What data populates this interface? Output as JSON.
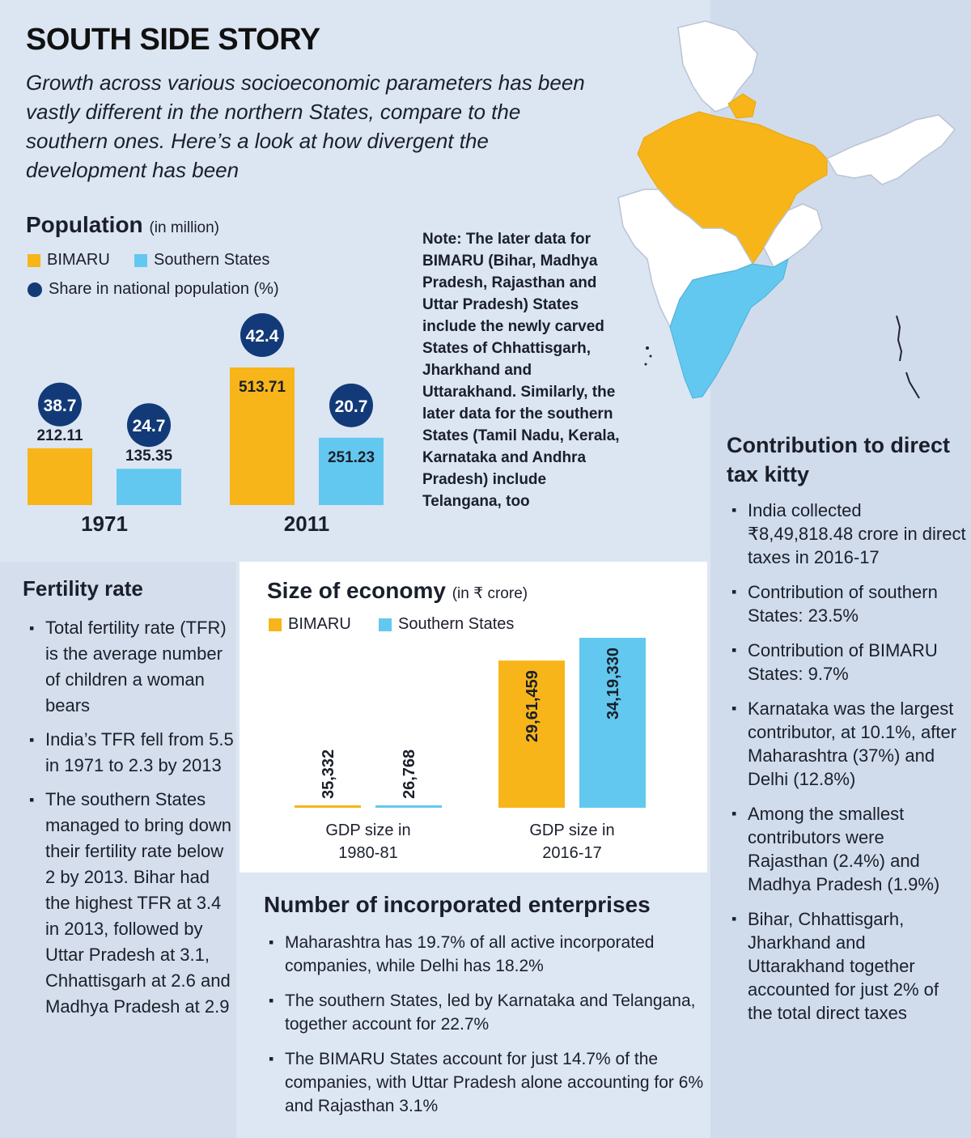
{
  "header": {
    "title": "SOUTH SIDE STORY",
    "intro": "Growth across various socioeconomic parameters has been vastly different in the northern States, compare to the southern ones.  Here’s a look at how divergent the development has been"
  },
  "colors": {
    "bimaru": "#f7b519",
    "southern": "#63c8ef",
    "share_circle": "#123a78",
    "map_other": "#ffffff"
  },
  "population": {
    "title": "Population",
    "unit": "(in million)",
    "legend_bimaru": "BIMARU",
    "legend_southern": "Southern States",
    "legend_share": "Share in national population (%)",
    "note": "Note: The later data for BIMARU (Bihar, Madhya Pradesh, Rajasthan and Uttar Pradesh) States include the newly carved States of Chhattisgarh, Jharkhand and Uttarakhand. Similarly, the later data for the southern States (Tamil Nadu, Kerala, Karnataka and Andhra Pradesh) include Telangana, too"
  },
  "economy": {
    "title": "Size of economy",
    "unit": "(in ₹ crore)",
    "legend_bimaru": "BIMARU",
    "legend_southern": "Southern States"
  },
  "fertility": {
    "title": "Fertility rate",
    "items": [
      "Total fertility rate (TFR) is the average number of children a woman bears",
      "India’s TFR fell from 5.5 in 1971 to 2.3 by 2013",
      "The southern States managed to bring down their fertility rate below 2 by 2013. Bihar had the highest TFR at 3.4 in 2013, followed by Uttar Pradesh at 3.1, Chhattisgarh at 2.6 and Madhya Pradesh at 2.9"
    ]
  },
  "enterprises": {
    "title": "Number of incorporated enterprises",
    "items": [
      "Maharashtra has 19.7% of all active incorporated companies, while Delhi has 18.2%",
      "The southern States, led by Karnataka and Telangana, together account for 22.7%",
      "The BIMARU States account for just 14.7% of the companies, with Uttar Pradesh alone accounting for 6% and Rajasthan 3.1%"
    ]
  },
  "tax": {
    "title": "Contribution to direct tax kitty",
    "items": [
      "India collected ₹8,49,818.48 crore in direct taxes in 2016-17",
      "Contribution of southern States: 23.5%",
      "Contribution of BIMARU States: 9.7%",
      "Karnataka was the largest contributor, at 10.1%, after Maharashtra (37%) and Delhi (12.8%)",
      "Among the smallest contributors were Rajasthan (2.4%) and Madhya Pradesh (1.9%)",
      "Bihar, Chhattisgarh, Jharkhand and Uttarakhand together accounted for just 2% of the total direct taxes"
    ]
  },
  "chart_data": [
    {
      "type": "bar",
      "title": "Population (in million)",
      "categories": [
        "1971",
        "2011"
      ],
      "series": [
        {
          "name": "BIMARU",
          "values": [
            212.11,
            513.71
          ],
          "labels": [
            "212.11",
            "513.71"
          ],
          "share": [
            38.7,
            42.4
          ]
        },
        {
          "name": "Southern States",
          "values": [
            135.35,
            251.23
          ],
          "labels": [
            "135.35",
            "251.23"
          ],
          "share": [
            24.7,
            20.7
          ]
        }
      ],
      "legend": [
        "BIMARU",
        "Southern States",
        "Share in national population (%)"
      ],
      "ylim": [
        0,
        513.71
      ]
    },
    {
      "type": "bar",
      "title": "Size of economy (in ₹ crore)",
      "categories": [
        "GDP size in 1980-81",
        "GDP size in 2016-17"
      ],
      "series": [
        {
          "name": "BIMARU",
          "values": [
            35332,
            2961459
          ],
          "labels": [
            "35,332",
            "29,61,459"
          ]
        },
        {
          "name": "Southern States",
          "values": [
            26768,
            3419330
          ],
          "labels": [
            "26,768",
            "34,19,330"
          ]
        }
      ],
      "legend": [
        "BIMARU",
        "Southern States"
      ],
      "ylim": [
        0,
        3419330
      ]
    }
  ]
}
